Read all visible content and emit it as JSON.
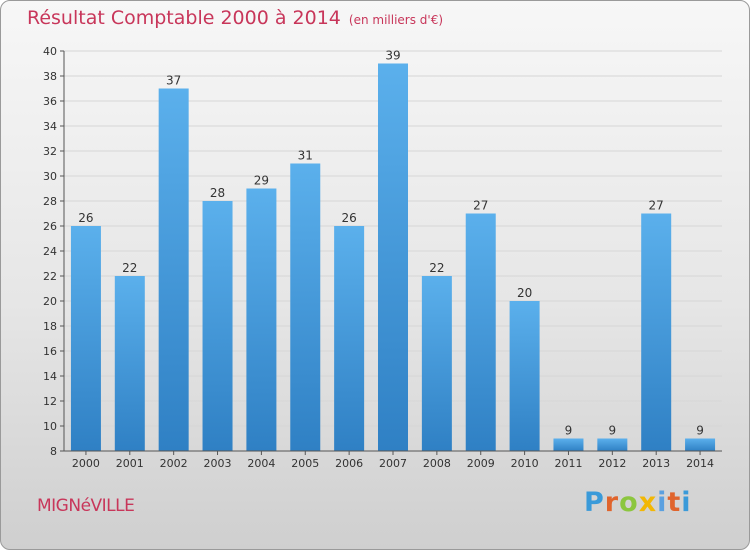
{
  "header": {
    "title": "Résultat Comptable 2000 à 2014",
    "unit": "(en milliers d'€)"
  },
  "footer": {
    "commune": "MIGNéVILLE",
    "brand_letters": [
      "P",
      "r",
      "o",
      "x",
      "i",
      "t",
      "i"
    ]
  },
  "colors": {
    "title": "#c8365a",
    "bar_top": "#5bb0ec",
    "bar_bottom": "#2f80c4",
    "axis": "#333333"
  },
  "chart_data": {
    "type": "bar",
    "title": "Résultat Comptable 2000 à 2014",
    "subtitle": "(en milliers d'€)",
    "xlabel": "",
    "ylabel": "",
    "categories": [
      "2000",
      "2001",
      "2002",
      "2003",
      "2004",
      "2005",
      "2006",
      "2007",
      "2008",
      "2009",
      "2010",
      "2011",
      "2012",
      "2013",
      "2014"
    ],
    "values": [
      26,
      22,
      37,
      28,
      29,
      31,
      26,
      39,
      22,
      27,
      20,
      9,
      9,
      27,
      9
    ],
    "ylim": [
      8,
      40
    ],
    "yticks": [
      8,
      10,
      12,
      14,
      16,
      18,
      20,
      22,
      24,
      26,
      28,
      30,
      32,
      34,
      36,
      38,
      40
    ],
    "grid": true,
    "legend": "none"
  }
}
